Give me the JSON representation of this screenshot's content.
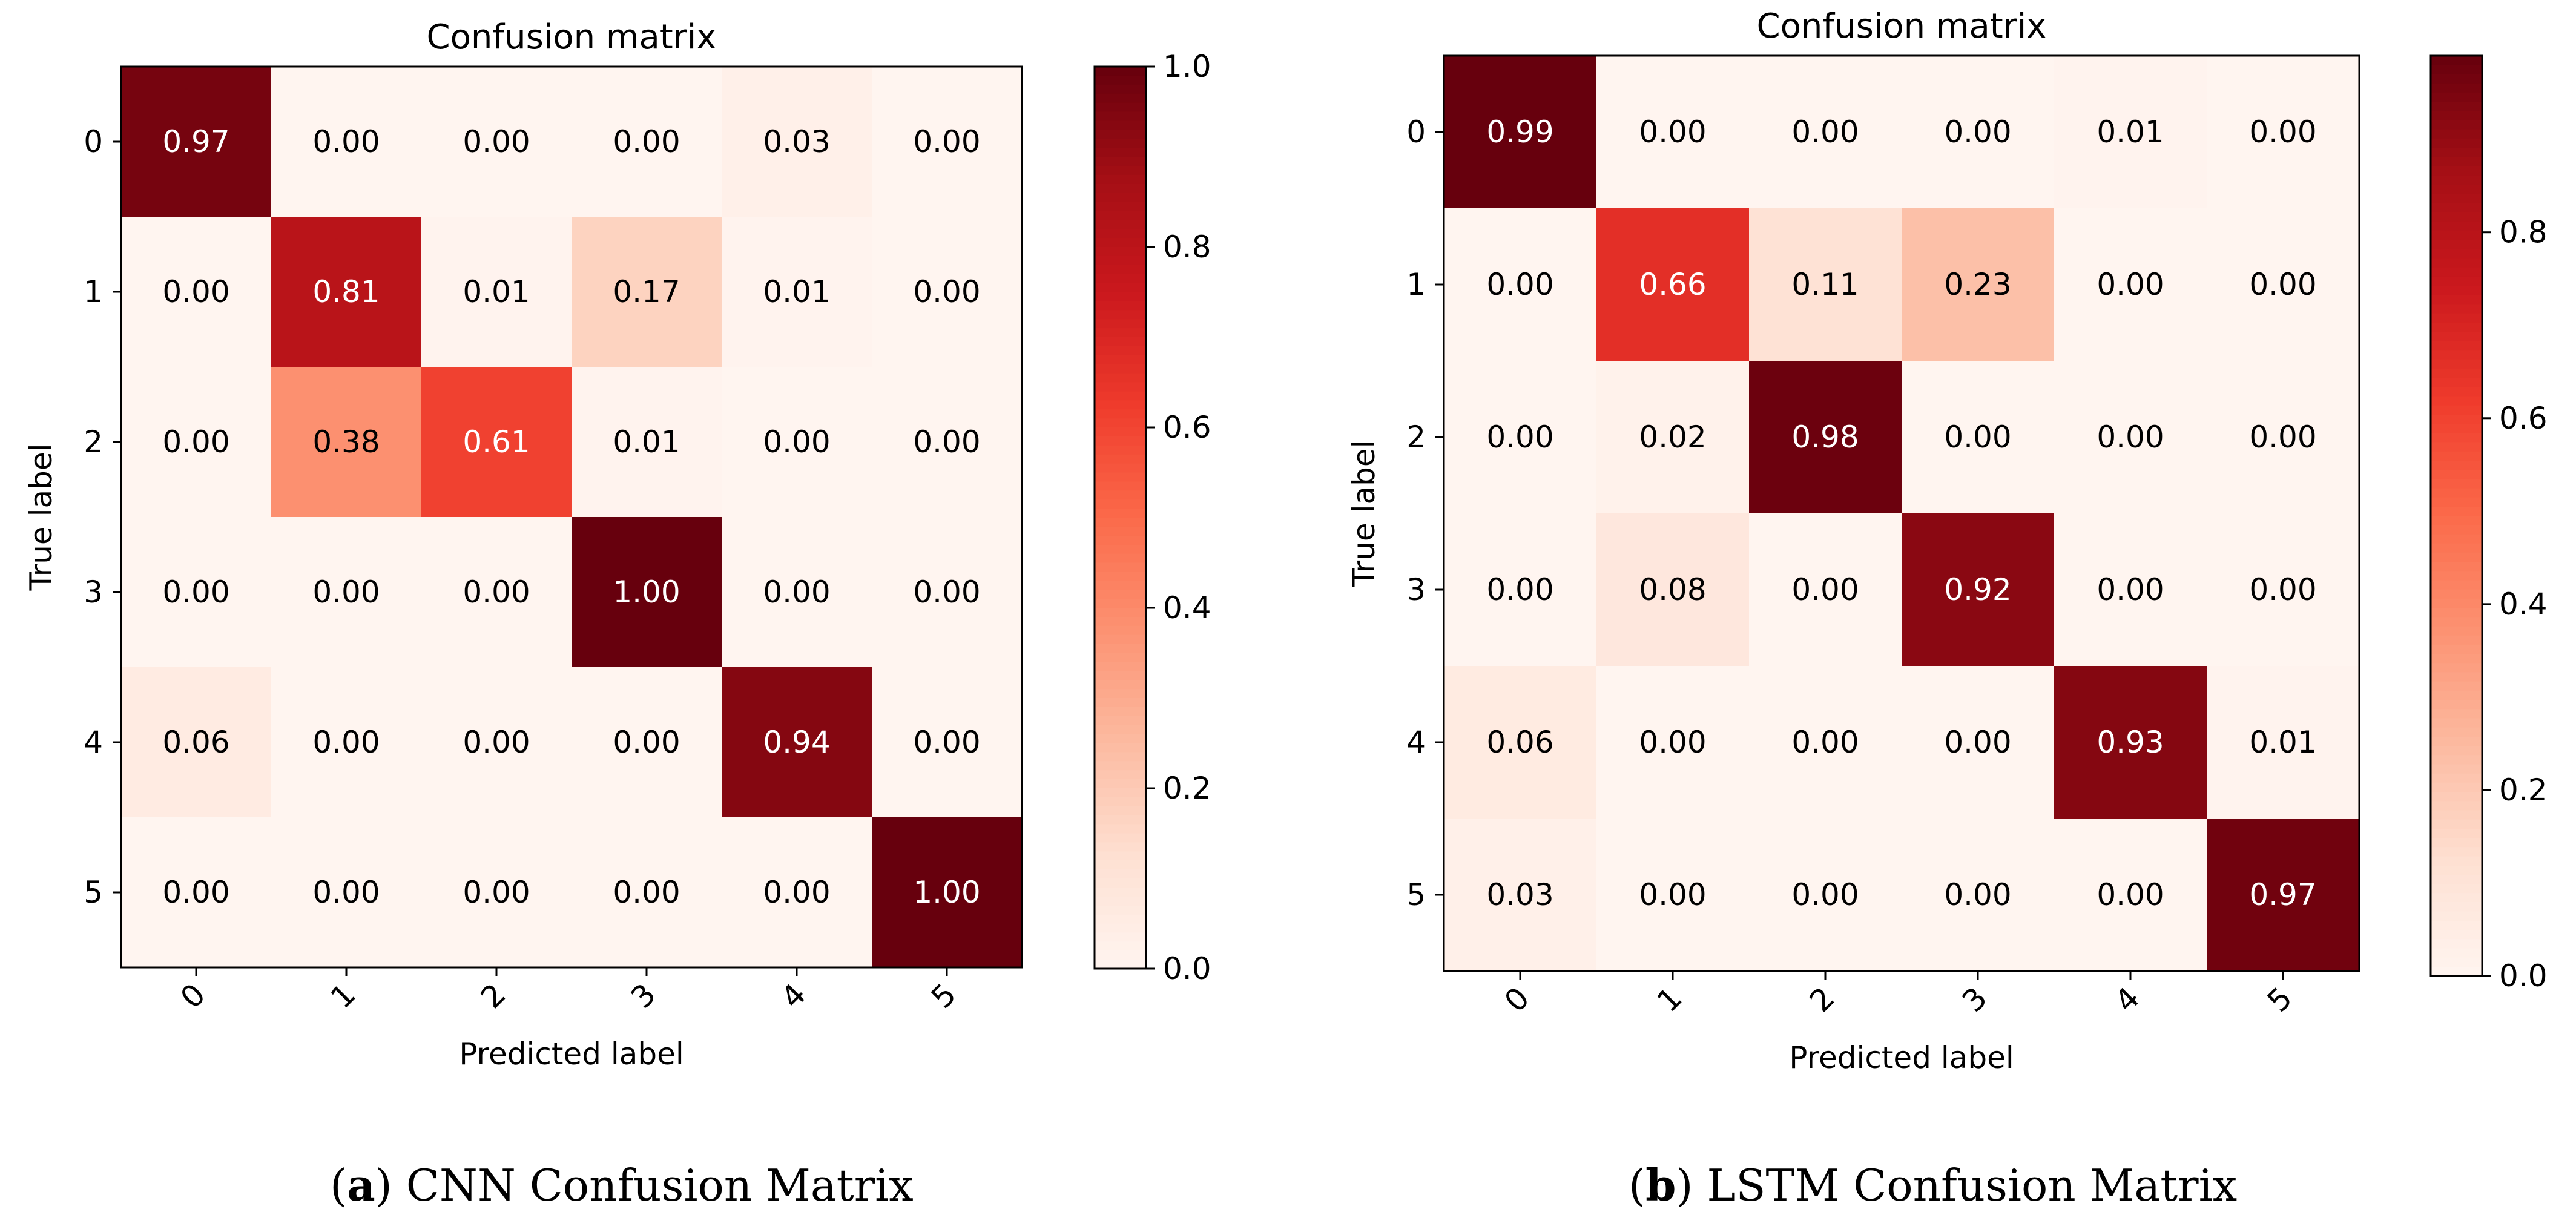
{
  "chart_data": [
    {
      "type": "heatmap",
      "title": "Confusion matrix",
      "xlabel": "Predicted label",
      "ylabel": "True label",
      "x_ticks": [
        "0",
        "1",
        "2",
        "3",
        "4",
        "5"
      ],
      "y_ticks": [
        "0",
        "1",
        "2",
        "3",
        "4",
        "5"
      ],
      "matrix": [
        [
          0.97,
          0.0,
          0.0,
          0.0,
          0.03,
          0.0
        ],
        [
          0.0,
          0.81,
          0.01,
          0.17,
          0.01,
          0.0
        ],
        [
          0.0,
          0.38,
          0.61,
          0.01,
          0.0,
          0.0
        ],
        [
          0.0,
          0.0,
          0.0,
          1.0,
          0.0,
          0.0
        ],
        [
          0.06,
          0.0,
          0.0,
          0.0,
          0.94,
          0.0
        ],
        [
          0.0,
          0.0,
          0.0,
          0.0,
          0.0,
          1.0
        ]
      ],
      "colormap": "Reds",
      "vmin": 0.0,
      "vmax": 1.0,
      "colorbar_ticks": [
        "0.0",
        "0.2",
        "0.4",
        "0.6",
        "0.8",
        "1.0"
      ],
      "caption": {
        "letter": "a",
        "text": "CNN Confusion Matrix"
      }
    },
    {
      "type": "heatmap",
      "title": "Confusion matrix",
      "xlabel": "Predicted label",
      "ylabel": "True label",
      "x_ticks": [
        "0",
        "1",
        "2",
        "3",
        "4",
        "5"
      ],
      "y_ticks": [
        "0",
        "1",
        "2",
        "3",
        "4",
        "5"
      ],
      "matrix": [
        [
          0.99,
          0.0,
          0.0,
          0.0,
          0.01,
          0.0
        ],
        [
          0.0,
          0.66,
          0.11,
          0.23,
          0.0,
          0.0
        ],
        [
          0.0,
          0.02,
          0.98,
          0.0,
          0.0,
          0.0
        ],
        [
          0.0,
          0.08,
          0.0,
          0.92,
          0.0,
          0.0
        ],
        [
          0.06,
          0.0,
          0.0,
          0.0,
          0.93,
          0.01
        ],
        [
          0.03,
          0.0,
          0.0,
          0.0,
          0.0,
          0.97
        ]
      ],
      "colormap": "Reds",
      "vmin": 0.0,
      "vmax": 0.99,
      "colorbar_ticks": [
        "0.0",
        "0.2",
        "0.4",
        "0.6",
        "0.8"
      ],
      "caption": {
        "letter": "b",
        "text": "LSTM Confusion Matrix"
      }
    }
  ]
}
